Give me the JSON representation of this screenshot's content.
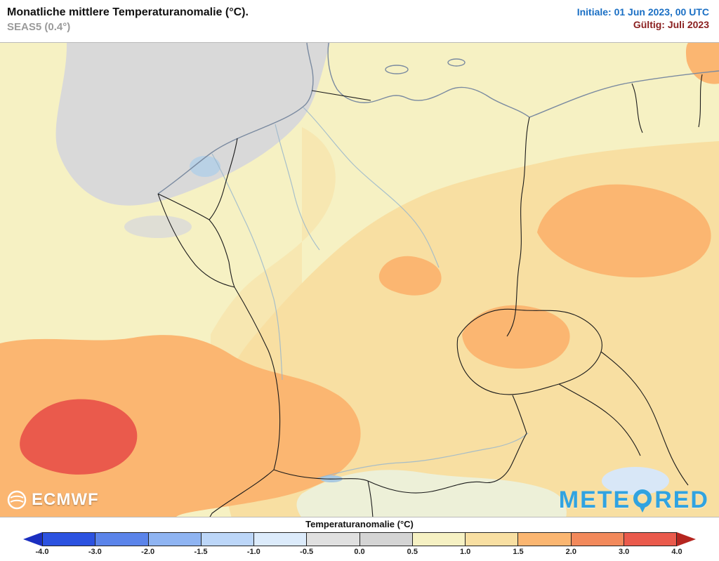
{
  "header": {
    "title": "Monatliche mittlere Temperaturanomalie (°C).",
    "subtitle": "SEAS5 (0.4°)",
    "init_label": "Initiale: 01 Jun 2023, 00 UTC",
    "valid_label": "Gültig: Juli 2023"
  },
  "map": {
    "ecmwf_label": "ECMWF",
    "meteored_prefix": "METE",
    "meteored_suffix": "RED",
    "region": "Central Europe (Germany, Benelux, France, Poland, Czechia, Austria, Switzerland, Denmark)"
  },
  "legend": {
    "title": "Temperaturanomalie (°C)",
    "ticks": [
      "-4.0",
      "-3.0",
      "-2.0",
      "-1.5",
      "-1.0",
      "-0.5",
      "0.0",
      "0.5",
      "1.0",
      "1.5",
      "2.0",
      "3.0",
      "4.0"
    ],
    "segment_colors": [
      "#2c52e0",
      "#5b84ea",
      "#8fb4f2",
      "#bcd6f8",
      "#dcebfb",
      "#e0e0e0",
      "#d4d4d4",
      "#f6f1c3",
      "#f8dfa2",
      "#fbb671",
      "#f2895b",
      "#ea5a4c"
    ],
    "arrow_left_color": "#1b2fc0",
    "arrow_right_color": "#b5251f"
  },
  "palette": {
    "pale": "#f6f1c3",
    "gray": "#d9d9d9",
    "warm1": "#f8dfa2",
    "warm2": "#fbb671",
    "warm4": "#ea5a4c",
    "cool1": "#d8e7f7",
    "green": "#edf0d8",
    "coast": "#7a8aa0",
    "border": "#1a1a1a",
    "river": "#9ab7cc",
    "brand_blue": "#31a3e0"
  }
}
